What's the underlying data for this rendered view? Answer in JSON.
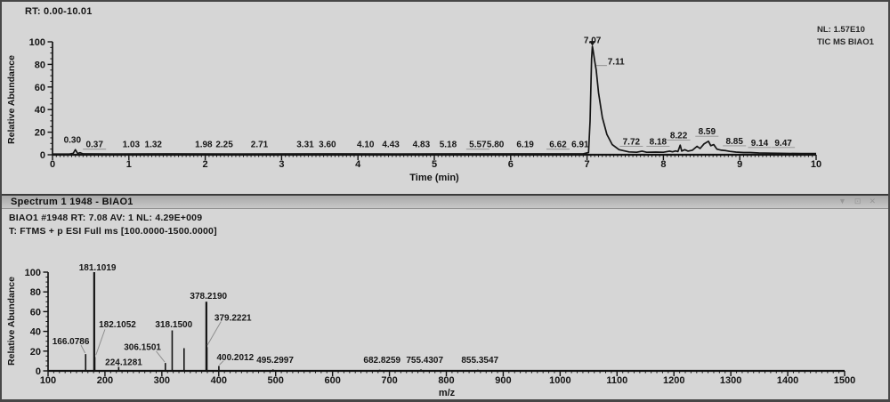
{
  "window": {
    "background": "#d4d4d4",
    "border_color": "#474747",
    "trace_color": "#141414",
    "leader_color": "#8f8f8f"
  },
  "chromatogram_panel": {
    "rt_range_label": "RT: 0.00-10.01",
    "annotation": {
      "nl": "NL: 1.57E10",
      "trace": "TIC MS BIAO1"
    }
  },
  "spectrum_panel": {
    "title": "Spectrum 1 1948 - BIAO1",
    "controls": {
      "menu": "▼",
      "float": "⊡",
      "close": "✕"
    },
    "info_line1": "BIAO1 #1948 RT: 7.08 AV: 1 NL: 4.29E+009",
    "info_line2": "T: FTMS + p ESI Full ms [100.0000-1500.0000]"
  },
  "chart_data": [
    {
      "type": "line",
      "title": "TIC chromatogram",
      "xlabel": "Time (min)",
      "ylabel": "Relative Abundance",
      "xlim": [
        0,
        10
      ],
      "ylim": [
        0,
        100
      ],
      "x_major_step": 1,
      "x_minor_step": 0.05,
      "y_major_step": 20,
      "y_minor_step": 5,
      "grid": false,
      "trace": [
        [
          0,
          0.6
        ],
        [
          0.22,
          0.6
        ],
        [
          0.27,
          1.2
        ],
        [
          0.3,
          4.5
        ],
        [
          0.33,
          1.0
        ],
        [
          0.36,
          1.8
        ],
        [
          0.4,
          0.8
        ],
        [
          0.8,
          0.7
        ],
        [
          1.5,
          0.8
        ],
        [
          2.5,
          0.7
        ],
        [
          3.5,
          0.8
        ],
        [
          4.5,
          0.7
        ],
        [
          5.5,
          0.8
        ],
        [
          6.5,
          0.8
        ],
        [
          6.95,
          0.8
        ],
        [
          7.02,
          2
        ],
        [
          7.04,
          30
        ],
        [
          7.06,
          85
        ],
        [
          7.07,
          96
        ],
        [
          7.08,
          92
        ],
        [
          7.1,
          83
        ],
        [
          7.12,
          75
        ],
        [
          7.15,
          55
        ],
        [
          7.2,
          33
        ],
        [
          7.26,
          18
        ],
        [
          7.33,
          9
        ],
        [
          7.42,
          4.5
        ],
        [
          7.55,
          2.5
        ],
        [
          7.65,
          2.2
        ],
        [
          7.72,
          3.2
        ],
        [
          7.78,
          2.2
        ],
        [
          7.9,
          2.4
        ],
        [
          8.0,
          2.2
        ],
        [
          8.08,
          3.2
        ],
        [
          8.12,
          2.6
        ],
        [
          8.16,
          3.4
        ],
        [
          8.19,
          2.8
        ],
        [
          8.22,
          8.5
        ],
        [
          8.24,
          3.2
        ],
        [
          8.28,
          4.5
        ],
        [
          8.32,
          3.2
        ],
        [
          8.38,
          4.0
        ],
        [
          8.44,
          7.5
        ],
        [
          8.48,
          5.5
        ],
        [
          8.53,
          9.5
        ],
        [
          8.59,
          12
        ],
        [
          8.62,
          8
        ],
        [
          8.66,
          9
        ],
        [
          8.7,
          5
        ],
        [
          8.76,
          4
        ],
        [
          8.82,
          3.6
        ],
        [
          8.87,
          3
        ],
        [
          8.95,
          2.4
        ],
        [
          9.05,
          2
        ],
        [
          9.14,
          2
        ],
        [
          9.25,
          1.6
        ],
        [
          9.4,
          1.4
        ],
        [
          9.6,
          1.2
        ],
        [
          9.8,
          1.1
        ],
        [
          10,
          1.1
        ]
      ],
      "apex_marker": {
        "t": 7.07,
        "y": 96
      },
      "peak_labels": [
        {
          "t": 0.26,
          "y": 10.5,
          "label": "0.30"
        },
        {
          "t": 0.55,
          "y": 6.5,
          "label": "0.37",
          "underline": true
        },
        {
          "t": 1.03,
          "y": 6.5,
          "label": "1.03"
        },
        {
          "t": 1.32,
          "y": 6.5,
          "label": "1.32"
        },
        {
          "t": 1.98,
          "y": 6.5,
          "label": "1.98"
        },
        {
          "t": 2.25,
          "y": 6.5,
          "label": "2.25"
        },
        {
          "t": 2.71,
          "y": 6.5,
          "label": "2.71"
        },
        {
          "t": 3.31,
          "y": 6.5,
          "label": "3.31"
        },
        {
          "t": 3.6,
          "y": 6.5,
          "label": "3.60"
        },
        {
          "t": 4.1,
          "y": 6.5,
          "label": "4.10"
        },
        {
          "t": 4.43,
          "y": 6.5,
          "label": "4.43"
        },
        {
          "t": 4.83,
          "y": 6.5,
          "label": "4.83"
        },
        {
          "t": 5.18,
          "y": 6.5,
          "label": "5.18"
        },
        {
          "t": 5.57,
          "y": 6.5,
          "label": "5.57",
          "underline": true
        },
        {
          "t": 5.8,
          "y": 6.5,
          "label": "5.80"
        },
        {
          "t": 6.19,
          "y": 6.5,
          "label": "6.19"
        },
        {
          "t": 6.62,
          "y": 6.5,
          "label": "6.62",
          "underline": true
        },
        {
          "t": 6.91,
          "y": 6.5,
          "label": "6.91"
        },
        {
          "t": 7.07,
          "y": 99,
          "label": "7.07"
        },
        {
          "t": 7.38,
          "y": 80,
          "label": "7.11",
          "leader": [
            7.12,
            79,
            7.26,
            79
          ]
        },
        {
          "t": 7.58,
          "y": 9,
          "label": "7.72",
          "underline": true
        },
        {
          "t": 7.93,
          "y": 9,
          "label": "8.18",
          "underline": true
        },
        {
          "t": 8.2,
          "y": 14.5,
          "label": "8.22",
          "underline": true
        },
        {
          "t": 8.57,
          "y": 18,
          "label": "8.59",
          "underline": true
        },
        {
          "t": 8.93,
          "y": 9.5,
          "label": "8.85",
          "underline": true
        },
        {
          "t": 9.26,
          "y": 8,
          "label": "9.14",
          "underline": true
        },
        {
          "t": 9.57,
          "y": 8,
          "label": "9.47",
          "underline": true
        }
      ]
    },
    {
      "type": "bar",
      "title": "Full MS spectrum",
      "xlabel": "m/z",
      "ylabel": "Relative Abundance",
      "xlim": [
        100,
        1500
      ],
      "ylim": [
        0,
        100
      ],
      "x_major_step": 100,
      "x_minor_step": 10,
      "y_major_step": 20,
      "y_minor_step": 5,
      "grid": false,
      "peaks": [
        {
          "mz": 166.0786,
          "intensity": 17
        },
        {
          "mz": 181.1019,
          "intensity": 100
        },
        {
          "mz": 182.1052,
          "intensity": 14
        },
        {
          "mz": 224.1281,
          "intensity": 4
        },
        {
          "mz": 306.1501,
          "intensity": 8
        },
        {
          "mz": 318.15,
          "intensity": 41
        },
        {
          "mz": 339.0,
          "intensity": 23
        },
        {
          "mz": 378.219,
          "intensity": 70
        },
        {
          "mz": 379.2221,
          "intensity": 24
        },
        {
          "mz": 400.2012,
          "intensity": 5
        },
        {
          "mz": 495.2997,
          "intensity": 1.5
        },
        {
          "mz": 682.8259,
          "intensity": 1.2
        },
        {
          "mz": 755.4307,
          "intensity": 1.5
        },
        {
          "mz": 855.3547,
          "intensity": 1.2
        }
      ],
      "labels": [
        {
          "x": 140,
          "y": 27,
          "label": "166.0786",
          "leader": [
            158,
            26,
            165,
            18
          ]
        },
        {
          "x": 187,
          "y": 102,
          "label": "181.1019"
        },
        {
          "x": 222,
          "y": 44,
          "label": "182.1052",
          "leader": [
            200,
            42,
            184,
            16
          ]
        },
        {
          "x": 233,
          "y": 6,
          "label": "224.1281",
          "leader": [
            221,
            7,
            224,
            5
          ]
        },
        {
          "x": 266,
          "y": 21,
          "label": "306.1501",
          "leader": [
            290,
            20,
            305,
            9
          ]
        },
        {
          "x": 321,
          "y": 44,
          "label": "318.1500"
        },
        {
          "x": 382,
          "y": 73,
          "label": "378.2190"
        },
        {
          "x": 425,
          "y": 51,
          "label": "379.2221",
          "leader": [
            404,
            50,
            380,
            26
          ]
        },
        {
          "x": 429,
          "y": 11,
          "label": "400.2012",
          "leader": [
            408,
            10,
            401,
            6
          ]
        },
        {
          "x": 499,
          "y": 8,
          "label": "495.2997"
        },
        {
          "x": 687,
          "y": 8,
          "label": "682.8259"
        },
        {
          "x": 762,
          "y": 8,
          "label": "755.4307"
        },
        {
          "x": 859,
          "y": 8,
          "label": "855.3547"
        }
      ]
    }
  ]
}
